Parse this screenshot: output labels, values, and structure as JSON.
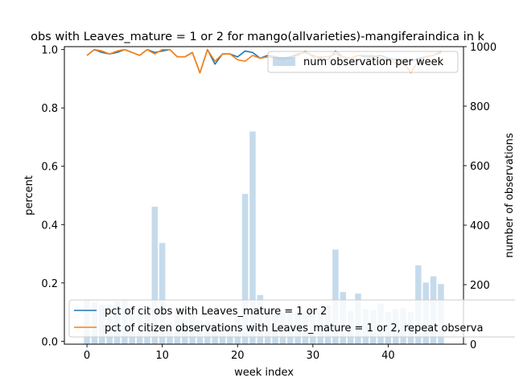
{
  "chart_data": {
    "type": "bar+line",
    "title": "obs with Leaves_mature = 1 or 2 for mango(allvarieties)-mangiferaindica in k",
    "xlabel": "week index",
    "ylabel": "percent",
    "y2label": "number of observations",
    "xlim": [
      -3,
      50
    ],
    "ylim": [
      -0.01,
      1.01
    ],
    "y2lim": [
      0,
      1000
    ],
    "xticks": [
      0,
      10,
      20,
      30,
      40
    ],
    "yticks": [
      0.0,
      0.2,
      0.4,
      0.6,
      0.8,
      1.0
    ],
    "y2ticks": [
      0,
      200,
      400,
      600,
      800,
      1000
    ],
    "bars": {
      "name": "num observation per week",
      "color": "#a6c8e2",
      "x": [
        0,
        1,
        2,
        3,
        4,
        5,
        6,
        7,
        8,
        9,
        10,
        11,
        12,
        13,
        14,
        15,
        16,
        17,
        18,
        19,
        20,
        21,
        22,
        23,
        24,
        25,
        26,
        27,
        28,
        29,
        30,
        31,
        32,
        33,
        34,
        35,
        36,
        37,
        38,
        39,
        40,
        41,
        42,
        43,
        44,
        45,
        46,
        47
      ],
      "values": [
        150,
        140,
        133,
        133,
        145,
        148,
        128,
        120,
        113,
        462,
        340,
        72,
        125,
        82,
        98,
        80,
        72,
        75,
        68,
        70,
        92,
        505,
        715,
        165,
        112,
        100,
        106,
        110,
        112,
        112,
        112,
        118,
        130,
        318,
        175,
        112,
        170,
        118,
        115,
        137,
        108,
        118,
        122,
        108,
        265,
        207,
        228,
        202
      ]
    },
    "series": [
      {
        "name": "pct of cit obs with Leaves_mature = 1 or 2",
        "color": "#1f77b4",
        "x": [
          0,
          1,
          2,
          3,
          4,
          5,
          6,
          7,
          8,
          9,
          10,
          11,
          12,
          13,
          14,
          15,
          16,
          17,
          18,
          19,
          20,
          21,
          22,
          23,
          24,
          25,
          26,
          27,
          28,
          29,
          30,
          31,
          32,
          33,
          34,
          35,
          36,
          37,
          38,
          39,
          40,
          41,
          42,
          43,
          44,
          45,
          46,
          47
        ],
        "values": [
          0.98,
          1.0,
          0.99,
          0.985,
          0.99,
          1.0,
          0.99,
          0.98,
          1.0,
          0.99,
          0.995,
          1.0,
          0.975,
          0.975,
          0.99,
          0.92,
          1.0,
          0.95,
          0.985,
          0.985,
          0.975,
          0.995,
          0.99,
          0.97,
          0.98,
          0.975,
          0.97,
          0.975,
          0.985,
          0.99,
          0.98,
          0.97,
          0.965,
          0.995,
          0.975,
          0.97,
          0.98,
          0.975,
          0.975,
          0.98,
          0.97,
          0.965,
          0.965,
          0.96,
          0.97,
          0.975,
          0.98,
          0.99
        ]
      },
      {
        "name": "pct of citizen observations with Leaves_mature = 1 or 2, repeat observa",
        "color": "#ff7f0e",
        "x": [
          0,
          1,
          2,
          3,
          4,
          5,
          6,
          7,
          8,
          9,
          10,
          11,
          12,
          13,
          14,
          15,
          16,
          17,
          18,
          19,
          20,
          21,
          22,
          23,
          24,
          25,
          26,
          27,
          28,
          29,
          30,
          31,
          32,
          33,
          34,
          35,
          36,
          37,
          38,
          39,
          40,
          41,
          42,
          43,
          44,
          45,
          46,
          47
        ],
        "values": [
          0.98,
          1.0,
          0.995,
          0.985,
          0.995,
          1.0,
          0.99,
          0.98,
          1.0,
          0.985,
          1.0,
          1.0,
          0.975,
          0.975,
          0.99,
          0.92,
          1.0,
          0.96,
          0.985,
          0.985,
          0.965,
          0.96,
          0.98,
          0.97,
          0.975,
          0.97,
          0.965,
          0.97,
          0.98,
          0.995,
          0.975,
          0.975,
          0.975,
          0.985,
          0.975,
          0.97,
          0.98,
          0.98,
          0.98,
          0.97,
          0.965,
          0.955,
          0.96,
          0.92,
          0.96,
          0.975,
          0.98,
          0.995
        ]
      }
    ],
    "legends": [
      {
        "placement": "upper-right",
        "entries": [
          "num observation per week"
        ]
      },
      {
        "placement": "lower-left",
        "entries": [
          "pct of cit obs with Leaves_mature = 1 or 2",
          "pct of citizen observations with Leaves_mature = 1 or 2, repeat observa"
        ]
      }
    ],
    "grid": false
  }
}
